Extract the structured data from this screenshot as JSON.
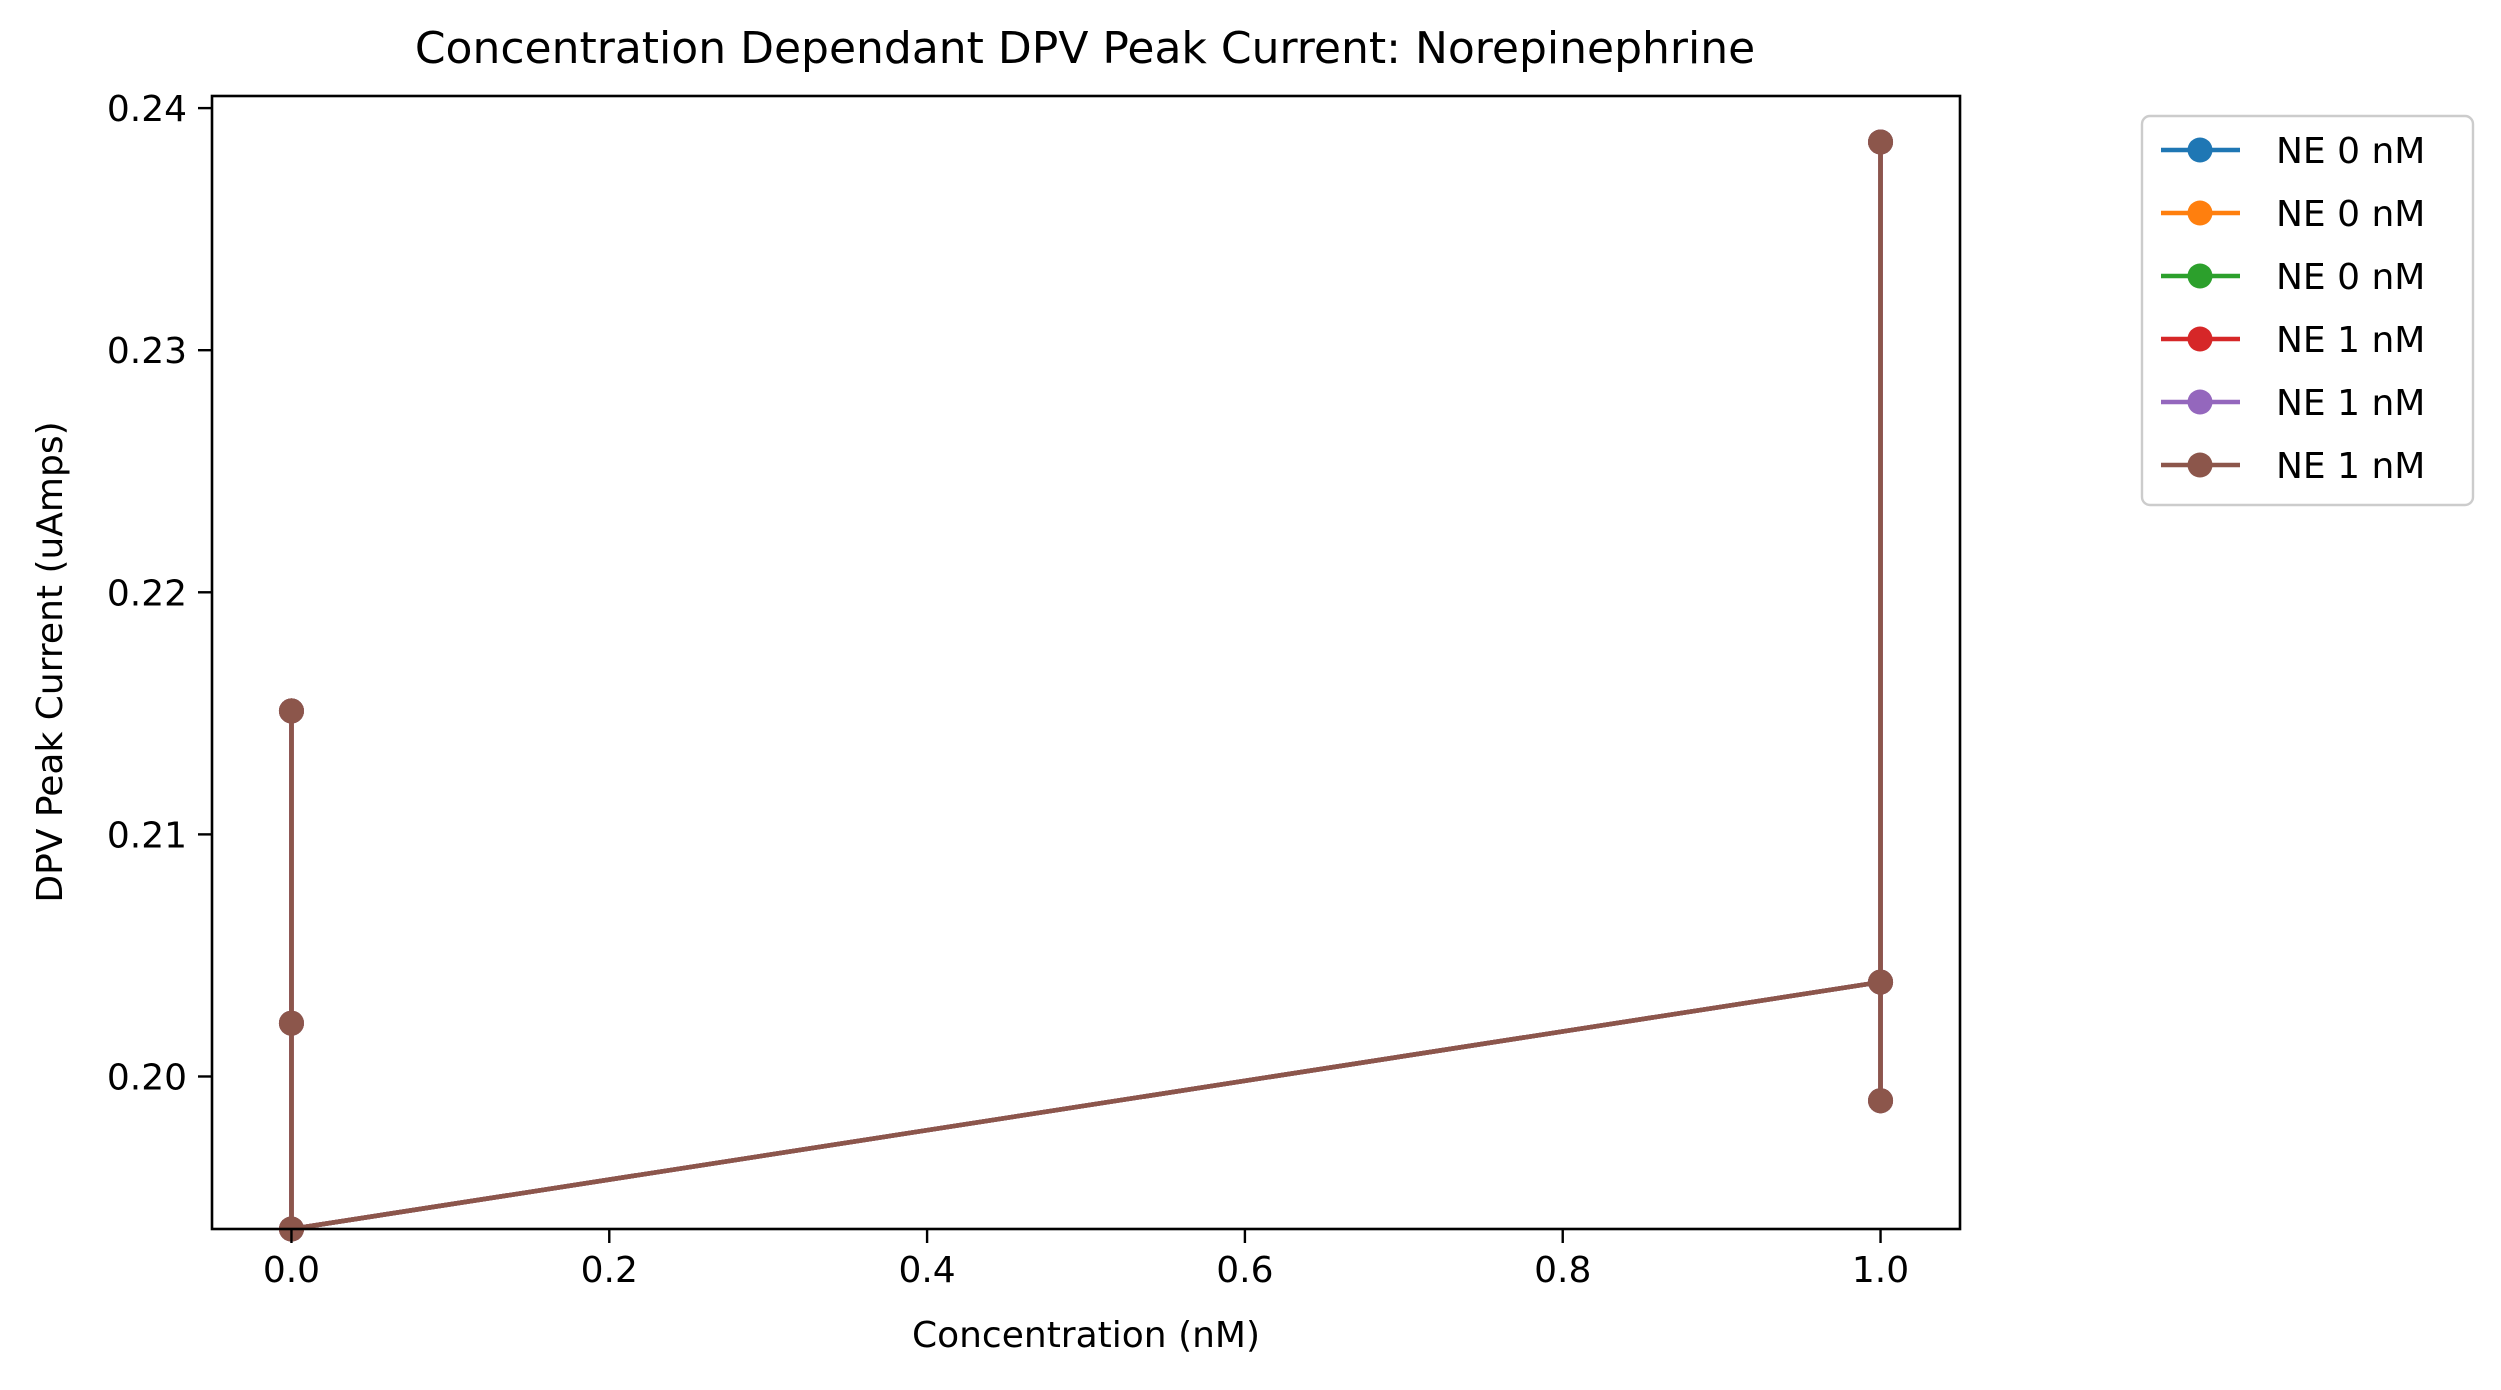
{
  "chart_data": {
    "type": "line",
    "title": "Concentration Dependant DPV Peak Current: Norepinephrine",
    "xlabel": "Concentration (nM)",
    "ylabel": "DPV Peak Current (uAmps)",
    "xlim": [
      -0.05,
      1.05
    ],
    "ylim": [
      0.1937,
      0.2405
    ],
    "xticks": [
      0.0,
      0.2,
      0.4,
      0.6,
      0.8,
      1.0
    ],
    "xtick_labels": [
      "0.0",
      "0.2",
      "0.4",
      "0.6",
      "0.8",
      "1.0"
    ],
    "yticks": [
      0.2,
      0.21,
      0.22,
      0.23,
      0.24
    ],
    "ytick_labels": [
      "0.20",
      "0.21",
      "0.22",
      "0.23",
      "0.24"
    ],
    "grid": false,
    "legend_position": "outside-right-top",
    "x": [
      0,
      0,
      0,
      1,
      1,
      1
    ],
    "series": [
      {
        "name": "NE 0 nM",
        "color": "#1f77b4",
        "y": [
          0.2151,
          0.2022,
          0.1937,
          0.2039,
          0.199,
          0.2386
        ]
      },
      {
        "name": "NE 0 nM",
        "color": "#ff7f0e",
        "y": [
          0.2151,
          0.2022,
          0.1937,
          0.2039,
          0.199,
          0.2386
        ]
      },
      {
        "name": "NE 0 nM",
        "color": "#2ca02c",
        "y": [
          0.2151,
          0.2022,
          0.1937,
          0.2039,
          0.199,
          0.2386
        ]
      },
      {
        "name": "NE 1 nM",
        "color": "#d62728",
        "y": [
          0.2151,
          0.2022,
          0.1937,
          0.2039,
          0.199,
          0.2386
        ]
      },
      {
        "name": "NE 1 nM",
        "color": "#9467bd",
        "y": [
          0.2151,
          0.2022,
          0.1937,
          0.2039,
          0.199,
          0.2386
        ]
      },
      {
        "name": "NE 1 nM",
        "color": "#8c564b",
        "y": [
          0.2151,
          0.2022,
          0.1937,
          0.2039,
          0.199,
          0.2386
        ]
      }
    ]
  }
}
